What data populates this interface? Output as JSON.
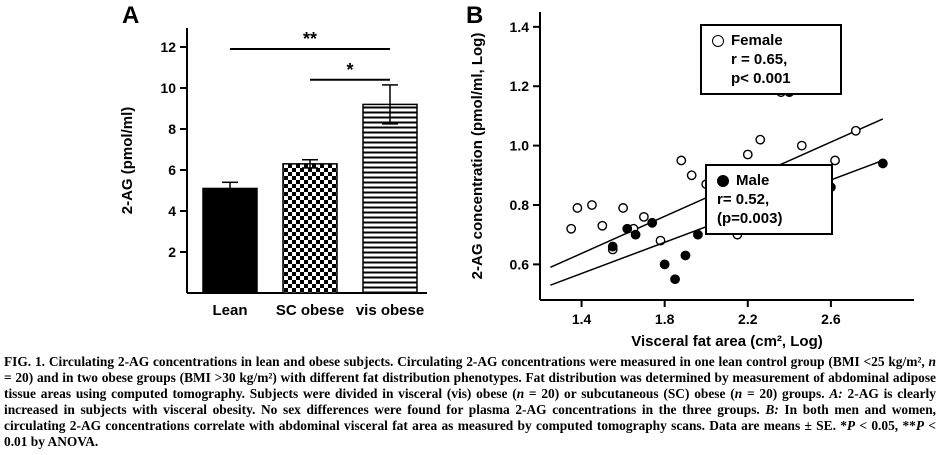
{
  "page": {
    "background": "#ffffff",
    "ink": "#000000"
  },
  "panelA": {
    "label": "A"
  },
  "panelB": {
    "label": "B",
    "legend_female": {
      "name": "Female",
      "line2": "r = 0.65,",
      "line3": "p< 0.001"
    },
    "legend_male": {
      "name": "Male",
      "line2": "r= 0.52,",
      "line3": "(p=0.003)"
    }
  },
  "chart_data": [
    {
      "type": "bar",
      "panel": "A",
      "title": "",
      "categories": [
        "Lean",
        "SC obese",
        "vis obese"
      ],
      "values": [
        5.1,
        6.3,
        9.2
      ],
      "errors": [
        0.3,
        0.2,
        0.95
      ],
      "bar_styles": [
        "solid-black",
        "checkerboard",
        "horizontal-stripes"
      ],
      "xlabel": "",
      "ylabel": "2-AG (pmol/ml)",
      "yticks": [
        2,
        4,
        6,
        8,
        10,
        12
      ],
      "ylim": [
        0,
        12.8
      ],
      "grid": false,
      "significance": [
        {
          "label": "**",
          "from": 0,
          "to": 2,
          "y": 11.9
        },
        {
          "label": "*",
          "from": 1,
          "to": 2,
          "y": 10.4
        }
      ]
    },
    {
      "type": "scatter",
      "panel": "B",
      "title": "",
      "xlabel": "Visceral fat area (cm², Log)",
      "ylabel": "2-AG concentration (pmol/ml, Log)",
      "xticks": [
        1.4,
        1.8,
        2.2,
        2.6
      ],
      "yticks": [
        0.6,
        0.8,
        1.0,
        1.2,
        1.4
      ],
      "xlim": [
        1.2,
        3.0
      ],
      "ylim": [
        0.48,
        1.45
      ],
      "grid": false,
      "legend_position": "right",
      "series": [
        {
          "name": "Female",
          "marker": "open",
          "r": 0.65,
          "p_text": "p< 0.001",
          "fit_line": [
            [
              1.25,
              0.59
            ],
            [
              2.85,
              1.09
            ]
          ],
          "points": [
            [
              1.35,
              0.72
            ],
            [
              1.38,
              0.79
            ],
            [
              1.45,
              0.8
            ],
            [
              1.5,
              0.73
            ],
            [
              1.55,
              0.65
            ],
            [
              1.6,
              0.79
            ],
            [
              1.65,
              0.72
            ],
            [
              1.7,
              0.76
            ],
            [
              1.78,
              0.68
            ],
            [
              1.88,
              0.95
            ],
            [
              1.93,
              0.9
            ],
            [
              2.0,
              0.87
            ],
            [
              2.05,
              0.74
            ],
            [
              2.1,
              0.8
            ],
            [
              2.15,
              0.7
            ],
            [
              2.2,
              0.97
            ],
            [
              2.26,
              1.02
            ],
            [
              2.3,
              1.25
            ],
            [
              2.36,
              1.18
            ],
            [
              2.4,
              0.86
            ],
            [
              2.46,
              1.0
            ],
            [
              2.55,
              1.22
            ],
            [
              2.62,
              0.95
            ],
            [
              2.72,
              1.05
            ]
          ]
        },
        {
          "name": "Male",
          "marker": "filled",
          "r": 0.52,
          "p_text": "(p=0.003)",
          "fit_line": [
            [
              1.25,
              0.53
            ],
            [
              2.85,
              0.95
            ]
          ],
          "points": [
            [
              1.55,
              0.66
            ],
            [
              1.62,
              0.72
            ],
            [
              1.66,
              0.7
            ],
            [
              1.74,
              0.74
            ],
            [
              1.8,
              0.6
            ],
            [
              1.85,
              0.55
            ],
            [
              1.9,
              0.63
            ],
            [
              1.96,
              0.7
            ],
            [
              2.04,
              0.79
            ],
            [
              2.1,
              0.8
            ],
            [
              2.14,
              0.77
            ],
            [
              2.2,
              0.82
            ],
            [
              2.24,
              0.8
            ],
            [
              2.3,
              0.84
            ],
            [
              2.36,
              0.79
            ],
            [
              2.4,
              1.18
            ],
            [
              2.44,
              1.24
            ],
            [
              2.5,
              0.76
            ],
            [
              2.6,
              0.86
            ],
            [
              2.85,
              0.94
            ]
          ]
        }
      ]
    }
  ],
  "caption": {
    "segments": [
      {
        "t": "FIG. 1. Circulating 2-AG concentrations in lean and obese subjects. Circulating 2-AG concentrations were measured in one lean control group (BMI <25 kg/m², "
      },
      {
        "t": "n",
        "i": true
      },
      {
        "t": " = 20) and in two obese groups (BMI >30 kg/m²) with different fat distribution phenotypes. Fat distribution was determined by measurement of abdominal adipose tissue areas using computed tomography. Subjects were divided in visceral (vis) obese ("
      },
      {
        "t": "n",
        "i": true
      },
      {
        "t": " = 20) or subcutaneous (SC) obese ("
      },
      {
        "t": "n",
        "i": true
      },
      {
        "t": " = 20) groups. "
      },
      {
        "t": "A:",
        "i": true
      },
      {
        "t": " 2-AG is clearly increased in subjects with visceral obesity. No sex differences were found for plasma 2-AG concentrations in the three groups. "
      },
      {
        "t": "B:",
        "i": true
      },
      {
        "t": " In both men and women, circulating 2-AG concentrations correlate with abdominal visceral fat area as measured by computed tomography scans. Data are means ± SE. *"
      },
      {
        "t": "P",
        "i": true
      },
      {
        "t": " < 0.05, **"
      },
      {
        "t": "P",
        "i": true
      },
      {
        "t": " < 0.01 by ANOVA."
      }
    ]
  }
}
